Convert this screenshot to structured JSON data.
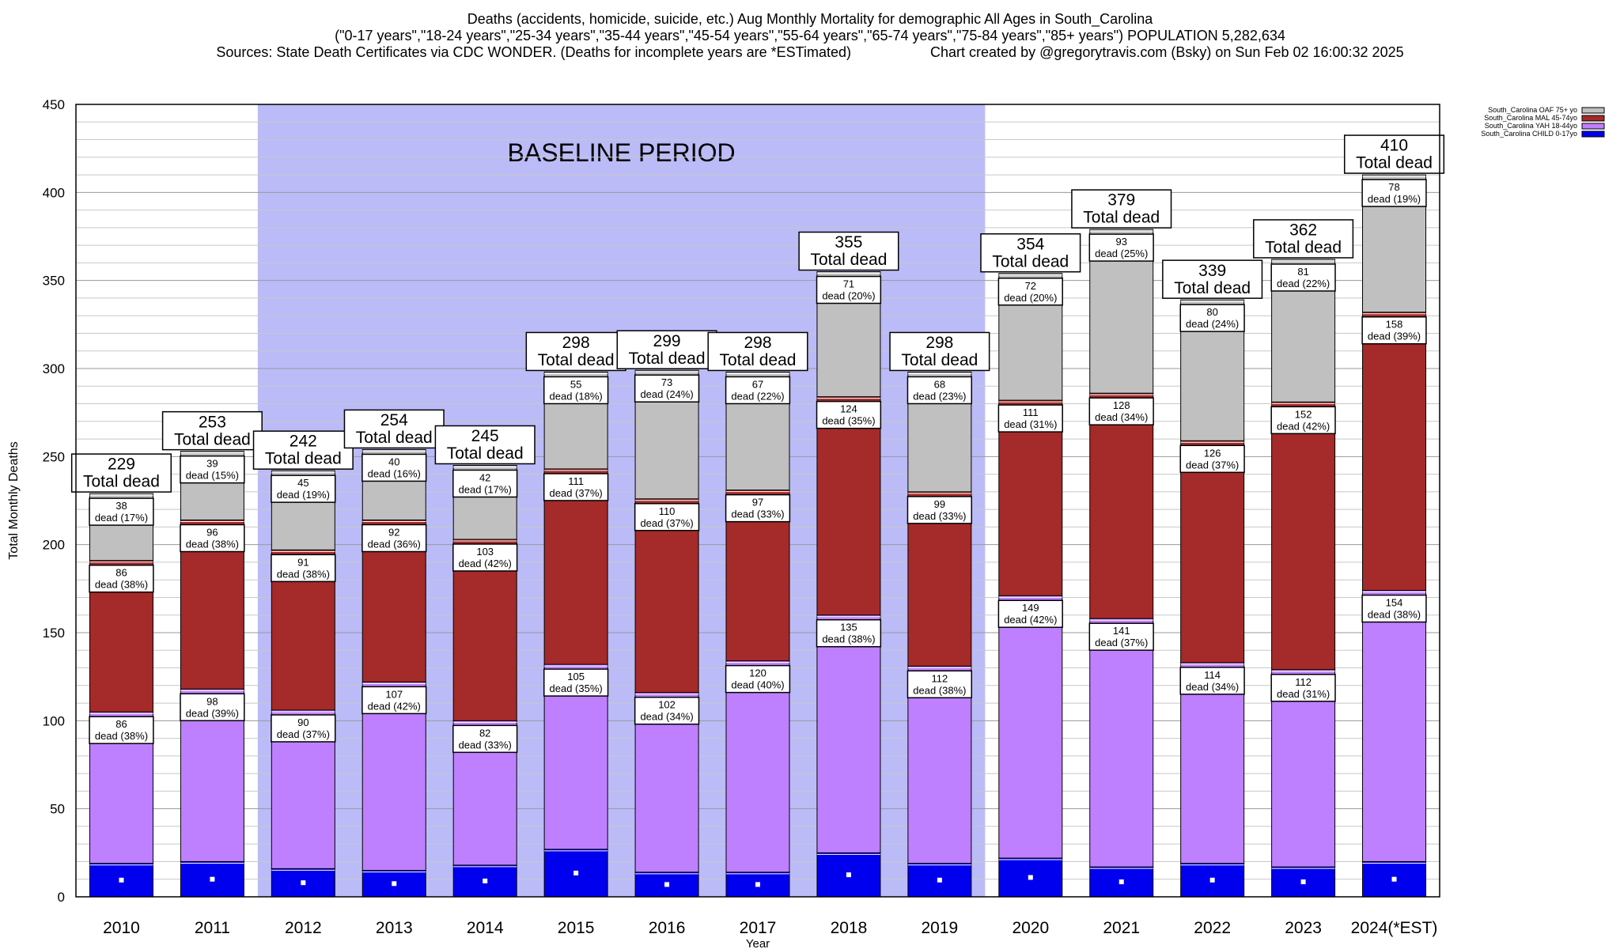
{
  "header": {
    "line1": "Deaths (accidents, homicide, suicide, etc.) Aug Monthly Mortality for demographic All Ages in South_Carolina",
    "line2": "(\"0-17 years\",\"18-24 years\",\"25-34 years\",\"35-44 years\",\"45-54 years\",\"55-64 years\",\"65-74 years\",\"75-84 years\",\"85+ years\") POPULATION 5,282,634",
    "line3_sources": "Sources: State Death Certificates via CDC WONDER. (Deaths for incomplete years are *ESTimated)",
    "line3_credit": "Chart created by @gregorytravis.com (Bsky) on Sun Feb 02 16:00:32 2025"
  },
  "chart_data": {
    "type": "bar",
    "stacked": true,
    "xlabel": "Year",
    "ylabel": "Total Monthly Deaths",
    "ylim": [
      0,
      450
    ],
    "yticks": [
      0,
      50,
      100,
      150,
      200,
      250,
      300,
      350,
      400,
      450
    ],
    "grid": true,
    "legend_position": "top-right",
    "categories": [
      "2010",
      "2011",
      "2012",
      "2013",
      "2014",
      "2015",
      "2016",
      "2017",
      "2018",
      "2019",
      "2020",
      "2021",
      "2022",
      "2023",
      "2024(*EST)"
    ],
    "series": [
      {
        "name": "South_Carolina CHILD 0-17yo",
        "color": "#0000ee",
        "values": [
          19,
          20,
          16,
          15,
          18,
          27,
          14,
          14,
          25,
          19,
          22,
          17,
          19,
          17,
          20
        ]
      },
      {
        "name": "South_Carolina YAH 18-44yo",
        "color": "#bf80ff",
        "values": [
          86,
          98,
          90,
          107,
          82,
          105,
          102,
          120,
          135,
          112,
          149,
          141,
          114,
          112,
          154
        ],
        "labels": [
          "86\ndead (38%)",
          "98\ndead (39%)",
          "90\ndead (37%)",
          "107\ndead (42%)",
          "82\ndead (33%)",
          "105\ndead (35%)",
          "102\ndead (34%)",
          "120\ndead (40%)",
          "135\ndead (38%)",
          "112\ndead (38%)",
          "149\ndead (42%)",
          "141\ndead (37%)",
          "114\ndead (34%)",
          "112\ndead (31%)",
          "154\ndead (38%)"
        ]
      },
      {
        "name": "South_Carolina MAL 45-74yo",
        "color": "#a52a2a",
        "values": [
          86,
          96,
          91,
          92,
          103,
          111,
          110,
          97,
          124,
          99,
          111,
          128,
          126,
          152,
          158
        ],
        "labels": [
          "86\ndead (38%)",
          "96\ndead (38%)",
          "91\ndead (38%)",
          "92\ndead (36%)",
          "103\ndead (42%)",
          "111\ndead (37%)",
          "110\ndead (37%)",
          "97\ndead (33%)",
          "124\ndead (35%)",
          "99\ndead (33%)",
          "111\ndead (31%)",
          "128\ndead (34%)",
          "126\ndead (37%)",
          "152\ndead (42%)",
          "158\ndead (39%)"
        ]
      },
      {
        "name": "South_Carolina OAF 75+ yo",
        "color": "#c0c0c0",
        "values": [
          38,
          39,
          45,
          40,
          42,
          55,
          73,
          67,
          71,
          68,
          72,
          93,
          80,
          81,
          78
        ],
        "labels": [
          "38\ndead (17%)",
          "39\ndead (15%)",
          "45\ndead (19%)",
          "40\ndead (16%)",
          "42\ndead (17%)",
          "55\ndead (18%)",
          "73\ndead (24%)",
          "67\ndead (22%)",
          "71\ndead (20%)",
          "68\ndead (23%)",
          "72\ndead (20%)",
          "93\ndead (25%)",
          "80\ndead (24%)",
          "81\ndead (22%)",
          "78\ndead (19%)"
        ]
      }
    ],
    "totals": [
      229,
      253,
      242,
      254,
      245,
      298,
      299,
      298,
      355,
      298,
      354,
      379,
      339,
      362,
      410
    ],
    "total_label_suffix": "Total dead",
    "baseline": {
      "label": "BASELINE PERIOD",
      "from": "2012",
      "to": "2019",
      "color": "#bbbbf8"
    }
  }
}
